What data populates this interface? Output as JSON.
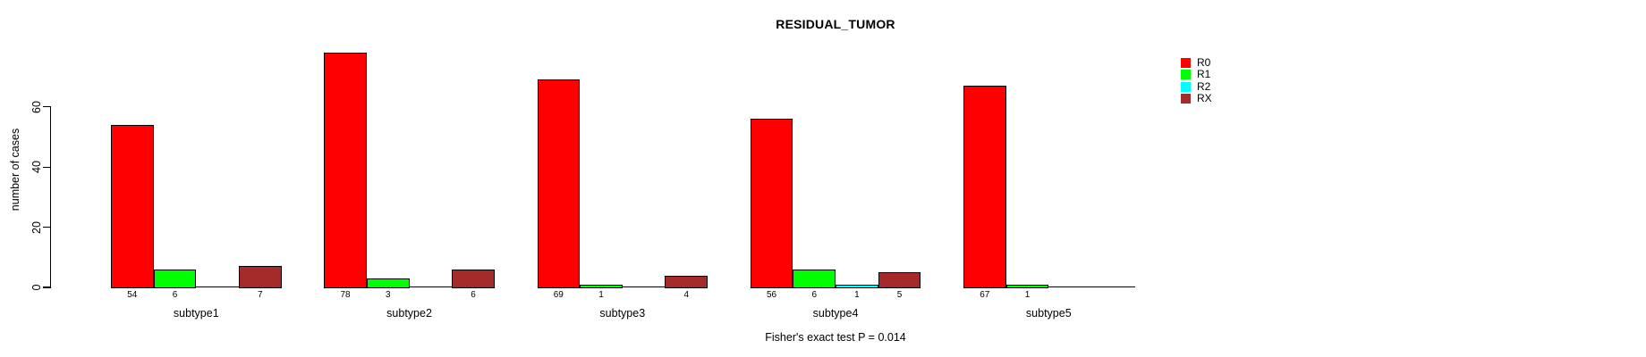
{
  "chart_data": {
    "type": "bar",
    "grouped": true,
    "title": "RESIDUAL_TUMOR",
    "xlabel": "",
    "ylabel": "number of cases",
    "annotation": "Fisher's exact test P = 0.014",
    "categories": [
      "subtype1",
      "subtype2",
      "subtype3",
      "subtype4",
      "subtype5"
    ],
    "series": [
      {
        "name": "R0",
        "color": "#FF0000",
        "values": [
          54,
          78,
          69,
          56,
          67
        ]
      },
      {
        "name": "R1",
        "color": "#00FF00",
        "values": [
          6,
          3,
          1,
          6,
          1
        ]
      },
      {
        "name": "R2",
        "color": "#00FFFF",
        "values": [
          0,
          0,
          0,
          1,
          0
        ]
      },
      {
        "name": "RX",
        "color": "#A52A2A",
        "values": [
          7,
          6,
          4,
          5,
          0
        ]
      }
    ],
    "value_labels_shown_for_nonzero_only": true,
    "yticks": [
      0,
      20,
      40,
      60
    ],
    "ylim": [
      0,
      78
    ],
    "grid": false,
    "legend_position": "top-right",
    "legend_entries": [
      "R0",
      "R1",
      "R2",
      "RX"
    ],
    "axis_color": "#000000",
    "bar_border_color": "#000000",
    "background_color": "#FFFFFF"
  }
}
